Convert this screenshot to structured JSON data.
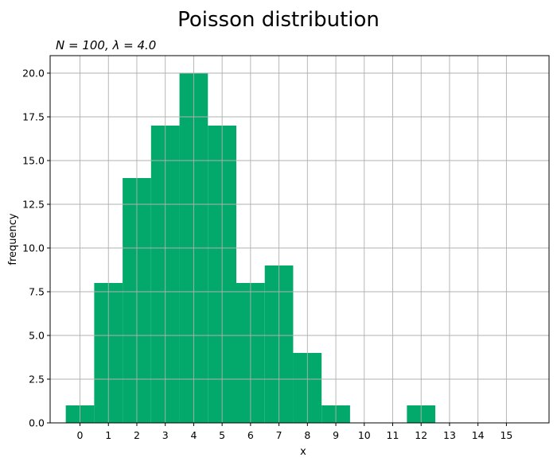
{
  "chart_data": {
    "type": "bar",
    "title": "Poisson distribution",
    "subtitle": "N = 100, λ = 4.0",
    "xlabel": "x",
    "ylabel": "frequency",
    "categories": [
      0,
      1,
      2,
      3,
      4,
      5,
      6,
      7,
      8,
      9,
      10,
      11,
      12,
      13,
      14,
      15
    ],
    "values": [
      1,
      8,
      14,
      17,
      20,
      17,
      8,
      9,
      4,
      1,
      0,
      0,
      1,
      0,
      0,
      0
    ],
    "xticks": [
      "0",
      "1",
      "2",
      "3",
      "4",
      "5",
      "6",
      "7",
      "8",
      "9",
      "10",
      "11",
      "12",
      "13",
      "14",
      "15"
    ],
    "yticks": [
      "0.0",
      "2.5",
      "5.0",
      "7.5",
      "10.0",
      "12.5",
      "15.0",
      "17.5",
      "20.0"
    ],
    "ylim": [
      0,
      21
    ],
    "xlim": [
      -1.05,
      16.5
    ],
    "grid": true,
    "bar_color": "#02a96b"
  }
}
